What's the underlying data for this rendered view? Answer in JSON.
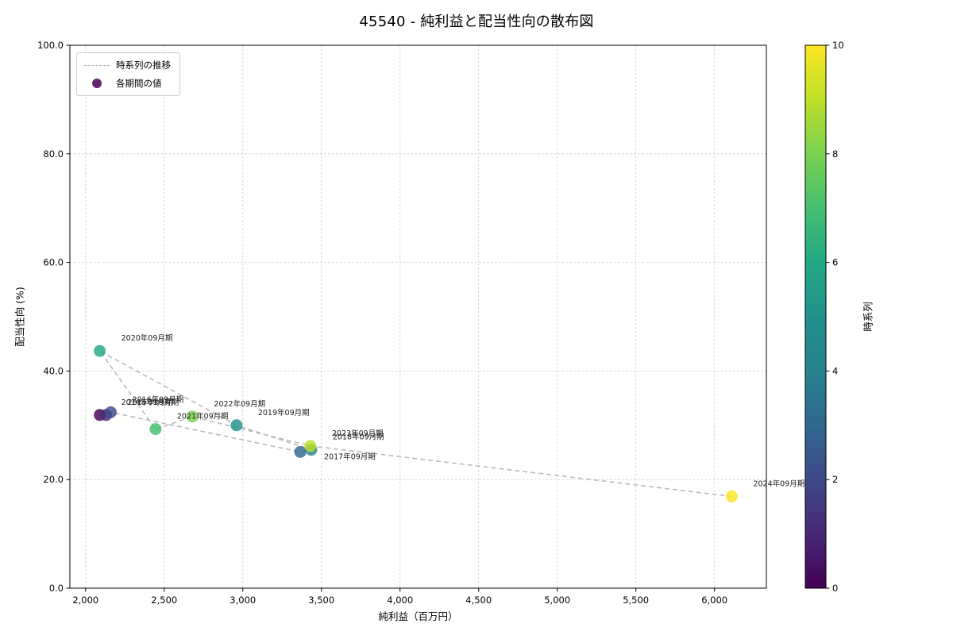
{
  "title": "45540 - 純利益と配当性向の散布図",
  "legend": {
    "line_label": "時系列の推移",
    "marker_label": "各期間の値"
  },
  "colorbar": {
    "label": "時系列",
    "min": 0,
    "max": 10,
    "tick_values": [
      0,
      2,
      4,
      6,
      8,
      10
    ],
    "tick_labels": [
      "0",
      "2",
      "4",
      "6",
      "8",
      "10"
    ]
  },
  "chart_data": {
    "type": "scatter",
    "title": "45540 - 純利益と配当性向の散布図",
    "xlabel": "純利益（百万円）",
    "ylabel": "配当性向 (%)",
    "xlim": [
      1900,
      6330
    ],
    "ylim": [
      0,
      100
    ],
    "grid": true,
    "x_tick_values": [
      2000,
      2500,
      3000,
      3500,
      4000,
      4500,
      5000,
      5500,
      6000
    ],
    "x_tick_labels": [
      "2,000",
      "2,500",
      "3,000",
      "3,500",
      "4,000",
      "4,500",
      "5,000",
      "5,500",
      "6,000"
    ],
    "y_tick_values": [
      0,
      20,
      40,
      60,
      80,
      100
    ],
    "y_tick_labels": [
      "0.0",
      "20.0",
      "40.0",
      "60.0",
      "80.0",
      "100.0"
    ],
    "line_color": "#b3b3b3",
    "grid_color": "#c9c9c9",
    "annotation_color": "#1a1a1a",
    "viridis_palette": [
      "#440154",
      "#482878",
      "#3e4989",
      "#31688e",
      "#26828e",
      "#21918c",
      "#22a884",
      "#44bf70",
      "#7ad151",
      "#bddf26",
      "#fde725"
    ],
    "points": [
      {
        "label": "2014年09月期",
        "x": 2090,
        "y": 31.9,
        "t": 0
      },
      {
        "label": "2015年09月期",
        "x": 2130,
        "y": 31.9,
        "t": 1
      },
      {
        "label": "2016年09月期",
        "x": 2160,
        "y": 32.4,
        "t": 2
      },
      {
        "label": "2017年09月期",
        "x": 3365,
        "y": 25.1,
        "t": 3,
        "ldx": 30,
        "ldy": 9
      },
      {
        "label": "2018年09月期",
        "x": 3435,
        "y": 25.5,
        "t": 4
      },
      {
        "label": "2019年09月期",
        "x": 2960,
        "y": 30.0,
        "t": 5
      },
      {
        "label": "2020年09月期",
        "x": 2090,
        "y": 43.7,
        "t": 6
      },
      {
        "label": "2021年09月期",
        "x": 2445,
        "y": 29.3,
        "t": 7
      },
      {
        "label": "2022年09月期",
        "x": 2680,
        "y": 31.6,
        "t": 8
      },
      {
        "label": "2023年09月期",
        "x": 3430,
        "y": 26.2,
        "t": 9
      },
      {
        "label": "2024年09月期",
        "x": 6110,
        "y": 16.9,
        "t": 10
      }
    ]
  }
}
